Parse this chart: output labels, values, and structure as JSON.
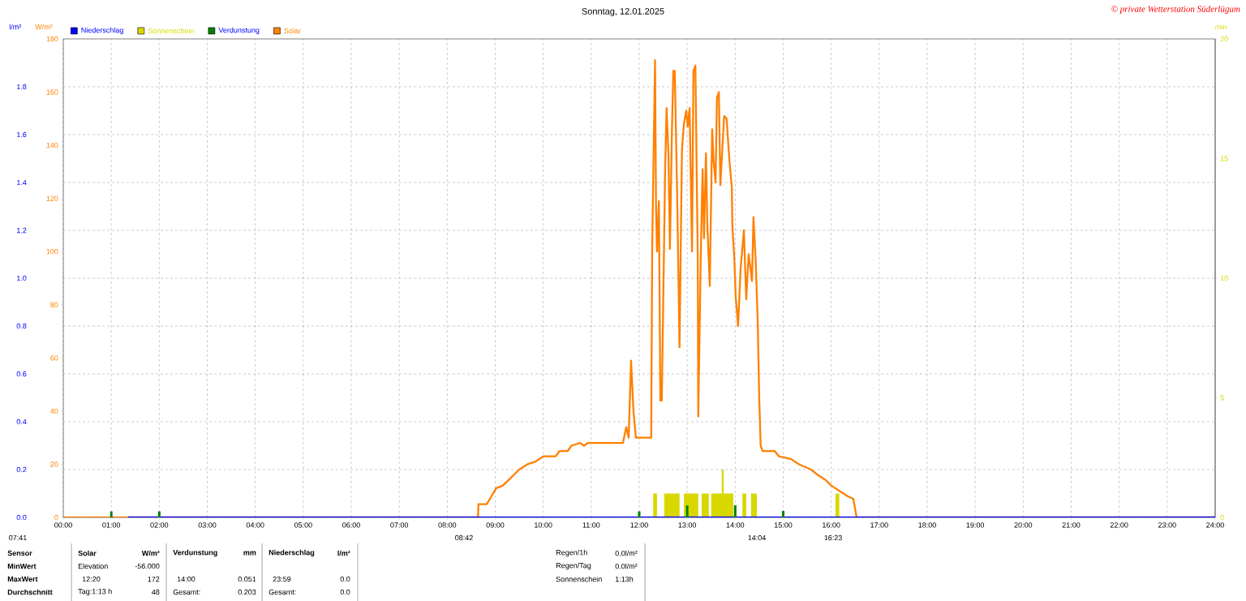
{
  "chart_data": {
    "type": "line",
    "title": "Sonntag, 12.01.2025",
    "ylabel": "W/m²",
    "y2label": "l/m²",
    "y3label": "min",
    "xlim": [
      0,
      24
    ],
    "xticks": [
      {
        "value": 0,
        "label": "00:00"
      },
      {
        "value": 1,
        "label": "01:00"
      },
      {
        "value": 2,
        "label": "02:00"
      },
      {
        "value": 3,
        "label": "03:00"
      },
      {
        "value": 4,
        "label": "04:00"
      },
      {
        "value": 5,
        "label": "05:00"
      },
      {
        "value": 6,
        "label": "06:00"
      },
      {
        "value": 7,
        "label": "07:00"
      },
      {
        "value": 8,
        "label": "08:00"
      },
      {
        "value": 9,
        "label": "09:00"
      },
      {
        "value": 10,
        "label": "10:00"
      },
      {
        "value": 11,
        "label": "11:00"
      },
      {
        "value": 12,
        "label": "12:00"
      },
      {
        "value": 13,
        "label": "13:00"
      },
      {
        "value": 14,
        "label": "14:00"
      },
      {
        "value": 15,
        "label": "15:00"
      },
      {
        "value": 16,
        "label": "16:00"
      },
      {
        "value": 17,
        "label": "17:00"
      },
      {
        "value": 18,
        "label": "18:00"
      },
      {
        "value": 19,
        "label": "19:00"
      },
      {
        "value": 20,
        "label": "20:00"
      },
      {
        "value": 21,
        "label": "21:00"
      },
      {
        "value": 22,
        "label": "22:00"
      },
      {
        "value": 23,
        "label": "23:00"
      },
      {
        "value": 24,
        "label": "24:00"
      }
    ],
    "ylim": [
      0,
      180
    ],
    "yticks": [
      0,
      20,
      40,
      60,
      80,
      100,
      120,
      140,
      160,
      180
    ],
    "y2lim": [
      0,
      2
    ],
    "y2ticks": [
      {
        "value": 0,
        "label": "0.0"
      },
      0.2,
      0.4,
      0.6,
      0.8,
      {
        "value": 1,
        "label": "1.0"
      },
      1.2,
      1.4,
      1.6,
      1.8
    ],
    "y3lim": [
      0,
      20
    ],
    "y3ticks": [
      0,
      5,
      10,
      15,
      20
    ],
    "grid": true,
    "legend": "top left",
    "series": [
      {
        "name": "Niederschlag",
        "color": "#0000ff",
        "axis": "y2",
        "x": [
          1.35,
          24
        ],
        "values": [
          0,
          0
        ]
      },
      {
        "name": "Sonnenschein",
        "color": "#d8d800",
        "type": "area",
        "axis": "y3",
        "x": [
          12.29,
          12.29,
          12.37,
          12.37,
          12.52,
          12.52,
          12.84,
          12.84,
          12.93,
          12.93,
          13.23,
          13.23,
          13.3,
          13.3,
          13.45,
          13.45,
          13.5,
          13.5,
          13.72,
          13.72,
          13.76,
          13.76,
          13.96,
          13.96,
          14.15,
          14.15,
          14.23,
          14.23,
          14.33,
          14.33,
          14.45,
          14.45,
          16.09,
          16.09,
          16.17,
          16.17
        ],
        "values": [
          0,
          1,
          1,
          0,
          0,
          1,
          1,
          0,
          0,
          1,
          1,
          0,
          0,
          1,
          1,
          0,
          0,
          1,
          1,
          2,
          2,
          1,
          1,
          0,
          0,
          1,
          1,
          0,
          0,
          1,
          1,
          0,
          0,
          1,
          1,
          0
        ]
      },
      {
        "name": "Verdunstung",
        "color": "#008000",
        "type": "bar",
        "axis": "y2",
        "x": [
          1,
          2,
          12,
          13,
          14,
          15
        ],
        "values": [
          0.025,
          0.025,
          0.025,
          0.05,
          0.051,
          0.027
        ]
      },
      {
        "name": "Solar",
        "color": "#ff8000",
        "axis": "y",
        "x": [
          0,
          8.64,
          8.65,
          8.82,
          8.89,
          9.02,
          9.16,
          9.33,
          9.5,
          9.67,
          9.84,
          10.0,
          10.26,
          10.34,
          10.51,
          10.59,
          10.77,
          10.85,
          10.93,
          11.66,
          11.73,
          11.78,
          11.83,
          11.88,
          11.93,
          12.25,
          12.27,
          12.33,
          12.35,
          12.37,
          12.41,
          12.44,
          12.47,
          12.51,
          12.54,
          12.57,
          12.61,
          12.64,
          12.68,
          12.71,
          12.74,
          12.79,
          12.84,
          12.89,
          12.93,
          12.98,
          13.01,
          13.05,
          13.1,
          13.13,
          13.17,
          13.22,
          13.23,
          13.28,
          13.32,
          13.35,
          13.39,
          13.42,
          13.47,
          13.52,
          13.55,
          13.59,
          13.62,
          13.66,
          13.69,
          13.77,
          13.82,
          13.88,
          13.93,
          13.94,
          13.98,
          14.01,
          14.06,
          14.11,
          14.18,
          14.23,
          14.28,
          14.35,
          14.38,
          14.43,
          14.47,
          14.5,
          14.53,
          14.57,
          14.82,
          14.91,
          15.16,
          15.33,
          15.58,
          15.72,
          15.89,
          16.0,
          16.17,
          16.34,
          16.46,
          16.53,
          24
        ],
        "values": [
          0,
          0,
          5,
          5,
          7,
          11,
          12,
          15,
          18,
          20,
          21,
          23,
          23,
          25,
          25,
          27,
          28,
          27,
          28,
          28,
          34,
          30,
          59,
          40,
          30,
          30,
          102,
          172,
          117,
          100,
          119,
          44,
          44,
          93,
          131,
          154,
          136,
          101,
          144,
          168,
          168,
          122,
          64,
          138,
          148,
          153,
          147,
          154,
          100,
          168,
          170,
          97,
          38,
          96,
          131,
          105,
          137,
          110,
          87,
          146,
          134,
          126,
          158,
          160,
          125,
          151,
          150,
          134,
          124,
          110,
          98,
          83,
          72,
          93,
          108,
          82,
          99,
          89,
          113,
          95,
          73,
          45,
          27,
          25,
          25,
          23,
          22,
          20,
          18,
          16,
          14,
          12,
          10,
          8,
          7,
          0,
          0
        ]
      }
    ],
    "annotations": [
      "© private Wetterstation Süderlügum",
      "07:41",
      "08:42",
      "14:04",
      "16:23",
      "Sensor",
      "MinWert",
      "MaxWert",
      "Durchschnitt",
      "Solar",
      "W/m²",
      "Elevation",
      "-56.000",
      "12:20",
      "172",
      "Tag:1:13 h",
      "48",
      "Verdunstung",
      "mm",
      "14:00",
      "0.051",
      "Gesamt:",
      "0.203",
      "Niederschlag",
      "l/m²",
      "23:59",
      "0.0",
      "Gesamt:",
      "0.0",
      "Regen/1h",
      "0.0l/m²",
      "Regen/Tag",
      "0.0l/m²",
      "Sonnenschein",
      "1:13h"
    ]
  }
}
